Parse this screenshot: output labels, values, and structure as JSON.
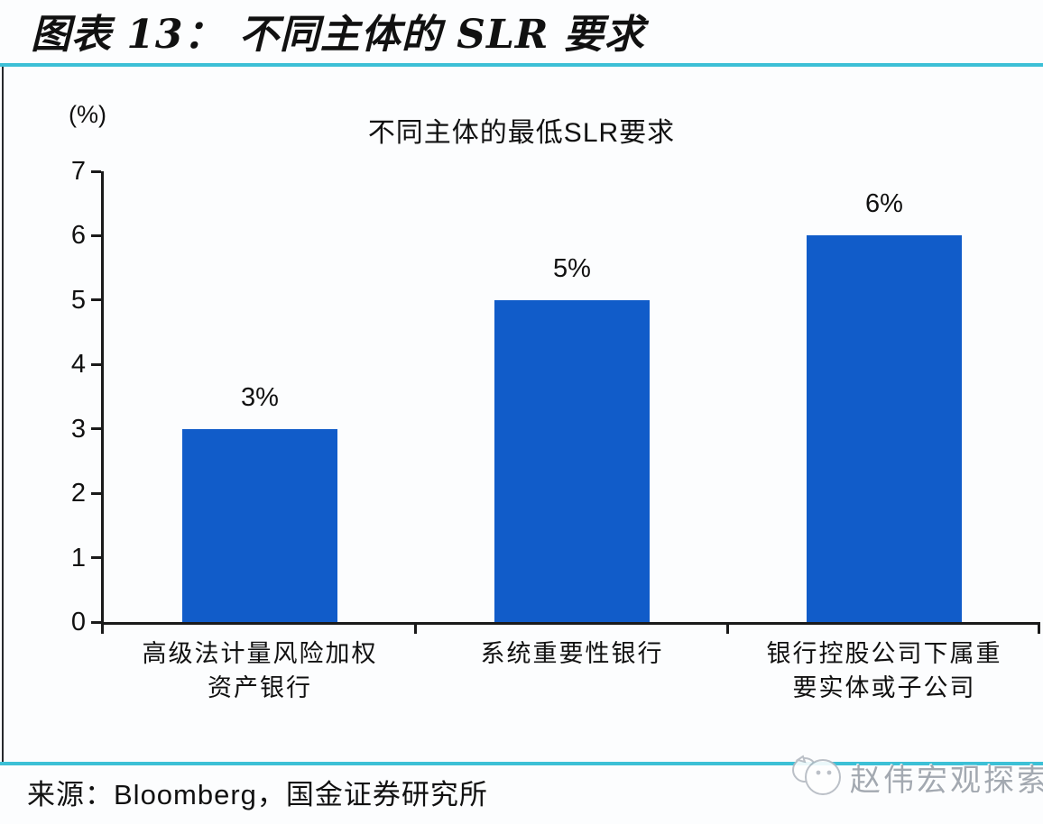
{
  "header": {
    "title": "图表 13：  不同主体的 SLR 要求"
  },
  "chart_data": {
    "type": "bar",
    "title": "不同主体的最低SLR要求",
    "unit_label": "(%)",
    "categories": [
      "高级法计量风险加权\n资产银行",
      "系统重要性银行",
      "银行控股公司下属重\n要实体或子公司"
    ],
    "values": [
      3,
      5,
      6
    ],
    "value_labels": [
      "3%",
      "5%",
      "6%"
    ],
    "ylim": [
      0,
      7
    ],
    "yticks": [
      0,
      1,
      2,
      3,
      4,
      5,
      6,
      7
    ],
    "xlabel": "",
    "ylabel": "(%)",
    "grid": false,
    "legend": "none",
    "bar_color": "#115cc9"
  },
  "source": {
    "label": "来源：Bloomberg，国金证券研究所"
  },
  "watermark": {
    "text": "赵伟宏观探索",
    "logo": "cat-avatar-icon"
  },
  "colors": {
    "accent_cyan": "#3cc0d6",
    "bar_blue": "#115cc9",
    "text": "#111111",
    "watermark_gray": "#a3a9b1"
  }
}
